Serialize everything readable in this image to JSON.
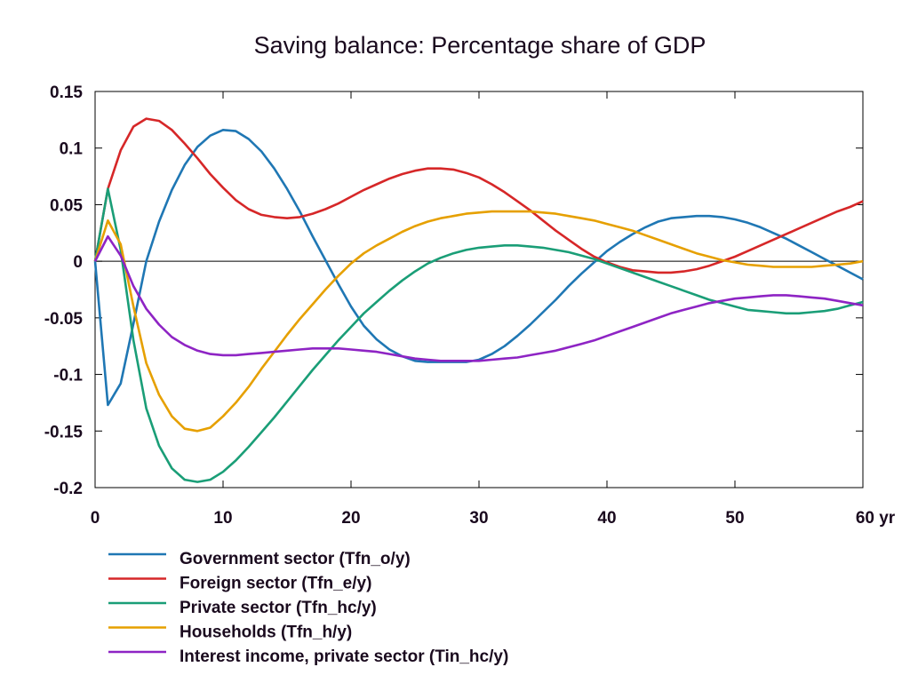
{
  "chart_data": {
    "type": "line",
    "title": "Saving balance: Percentage share of GDP",
    "xlabel": "",
    "ylabel": "",
    "xlim": [
      0,
      60
    ],
    "ylim": [
      -0.2,
      0.15
    ],
    "x_ticks": [
      0,
      10,
      20,
      30,
      40,
      50,
      60
    ],
    "x_tick_labels": [
      "0",
      "10",
      "20",
      "30",
      "40",
      "50",
      "60 yr"
    ],
    "y_ticks": [
      -0.2,
      -0.15,
      -0.1,
      -0.05,
      0,
      0.05,
      0.1,
      0.15
    ],
    "y_tick_labels": [
      "-0.2",
      "-0.15",
      "-0.1",
      "-0.05",
      "0",
      "0.05",
      "0.1",
      "0.15"
    ],
    "grid": false,
    "legend_position": "bottom-left",
    "x": [
      0,
      1,
      2,
      3,
      4,
      5,
      6,
      7,
      8,
      9,
      10,
      11,
      12,
      13,
      14,
      15,
      16,
      17,
      18,
      19,
      20,
      21,
      22,
      23,
      24,
      25,
      26,
      27,
      28,
      29,
      30,
      31,
      32,
      33,
      34,
      35,
      36,
      37,
      38,
      39,
      40,
      41,
      42,
      43,
      44,
      45,
      46,
      47,
      48,
      49,
      50,
      51,
      52,
      53,
      54,
      55,
      56,
      57,
      58,
      59,
      60
    ],
    "series": [
      {
        "name": "Government sector (Tfn_o/y)",
        "color": "#1f77b4",
        "values": [
          0,
          -0.127,
          -0.108,
          -0.055,
          0.0,
          0.035,
          0.063,
          0.085,
          0.101,
          0.111,
          0.116,
          0.115,
          0.108,
          0.097,
          0.082,
          0.064,
          0.044,
          0.022,
          0.001,
          -0.02,
          -0.04,
          -0.057,
          -0.069,
          -0.078,
          -0.084,
          -0.088,
          -0.089,
          -0.089,
          -0.089,
          -0.089,
          -0.087,
          -0.082,
          -0.075,
          -0.066,
          -0.056,
          -0.045,
          -0.034,
          -0.022,
          -0.011,
          -0.001,
          0.009,
          0.017,
          0.024,
          0.03,
          0.035,
          0.038,
          0.039,
          0.04,
          0.04,
          0.039,
          0.037,
          0.034,
          0.03,
          0.025,
          0.02,
          0.014,
          0.008,
          0.002,
          -0.004,
          -0.01,
          -0.016
        ]
      },
      {
        "name": "Foreign sector (Tfn_e/y)",
        "color": "#d62728",
        "values": [
          0,
          0.064,
          0.098,
          0.119,
          0.126,
          0.124,
          0.116,
          0.104,
          0.091,
          0.077,
          0.065,
          0.054,
          0.046,
          0.041,
          0.039,
          0.038,
          0.039,
          0.042,
          0.046,
          0.051,
          0.057,
          0.063,
          0.068,
          0.073,
          0.077,
          0.08,
          0.082,
          0.082,
          0.081,
          0.078,
          0.074,
          0.068,
          0.061,
          0.053,
          0.045,
          0.036,
          0.027,
          0.019,
          0.011,
          0.004,
          -0.001,
          -0.005,
          -0.008,
          -0.009,
          -0.01,
          -0.01,
          -0.009,
          -0.007,
          -0.004,
          0.0,
          0.004,
          0.009,
          0.014,
          0.019,
          0.024,
          0.029,
          0.034,
          0.039,
          0.044,
          0.048,
          0.053
        ]
      },
      {
        "name": "Private sector (Tfn_hc/y)",
        "color": "#1a9e77",
        "values": [
          0,
          0.064,
          0.01,
          -0.07,
          -0.13,
          -0.163,
          -0.183,
          -0.193,
          -0.195,
          -0.193,
          -0.186,
          -0.176,
          -0.164,
          -0.151,
          -0.138,
          -0.124,
          -0.11,
          -0.096,
          -0.083,
          -0.07,
          -0.058,
          -0.046,
          -0.036,
          -0.026,
          -0.017,
          -0.009,
          -0.002,
          0.003,
          0.007,
          0.01,
          0.012,
          0.013,
          0.014,
          0.014,
          0.013,
          0.012,
          0.01,
          0.008,
          0.005,
          0.002,
          -0.002,
          -0.006,
          -0.01,
          -0.014,
          -0.018,
          -0.022,
          -0.026,
          -0.03,
          -0.034,
          -0.037,
          -0.04,
          -0.043,
          -0.044,
          -0.045,
          -0.046,
          -0.046,
          -0.045,
          -0.044,
          -0.042,
          -0.039,
          -0.036
        ]
      },
      {
        "name": "Households (Tfn_h/y)",
        "color": "#e6a000",
        "values": [
          0,
          0.036,
          0.015,
          -0.04,
          -0.09,
          -0.118,
          -0.137,
          -0.148,
          -0.15,
          -0.147,
          -0.137,
          -0.125,
          -0.111,
          -0.095,
          -0.08,
          -0.065,
          -0.051,
          -0.038,
          -0.025,
          -0.013,
          -0.002,
          0.007,
          0.014,
          0.02,
          0.026,
          0.031,
          0.035,
          0.038,
          0.04,
          0.042,
          0.043,
          0.044,
          0.044,
          0.044,
          0.044,
          0.043,
          0.042,
          0.04,
          0.038,
          0.036,
          0.033,
          0.03,
          0.027,
          0.023,
          0.019,
          0.015,
          0.011,
          0.007,
          0.004,
          0.001,
          -0.001,
          -0.003,
          -0.004,
          -0.005,
          -0.005,
          -0.005,
          -0.005,
          -0.004,
          -0.003,
          -0.002,
          0.0
        ]
      },
      {
        "name": "Interest income, private sector (Tin_hc/y)",
        "color": "#8e24c4",
        "values": [
          0,
          0.022,
          0.005,
          -0.022,
          -0.042,
          -0.056,
          -0.067,
          -0.074,
          -0.079,
          -0.082,
          -0.083,
          -0.083,
          -0.082,
          -0.081,
          -0.08,
          -0.079,
          -0.078,
          -0.077,
          -0.077,
          -0.077,
          -0.078,
          -0.079,
          -0.08,
          -0.082,
          -0.084,
          -0.086,
          -0.087,
          -0.088,
          -0.088,
          -0.088,
          -0.088,
          -0.087,
          -0.086,
          -0.085,
          -0.083,
          -0.081,
          -0.079,
          -0.076,
          -0.073,
          -0.07,
          -0.066,
          -0.062,
          -0.058,
          -0.054,
          -0.05,
          -0.046,
          -0.043,
          -0.04,
          -0.037,
          -0.035,
          -0.033,
          -0.032,
          -0.031,
          -0.03,
          -0.03,
          -0.031,
          -0.032,
          -0.033,
          -0.035,
          -0.037,
          -0.039
        ]
      }
    ]
  }
}
